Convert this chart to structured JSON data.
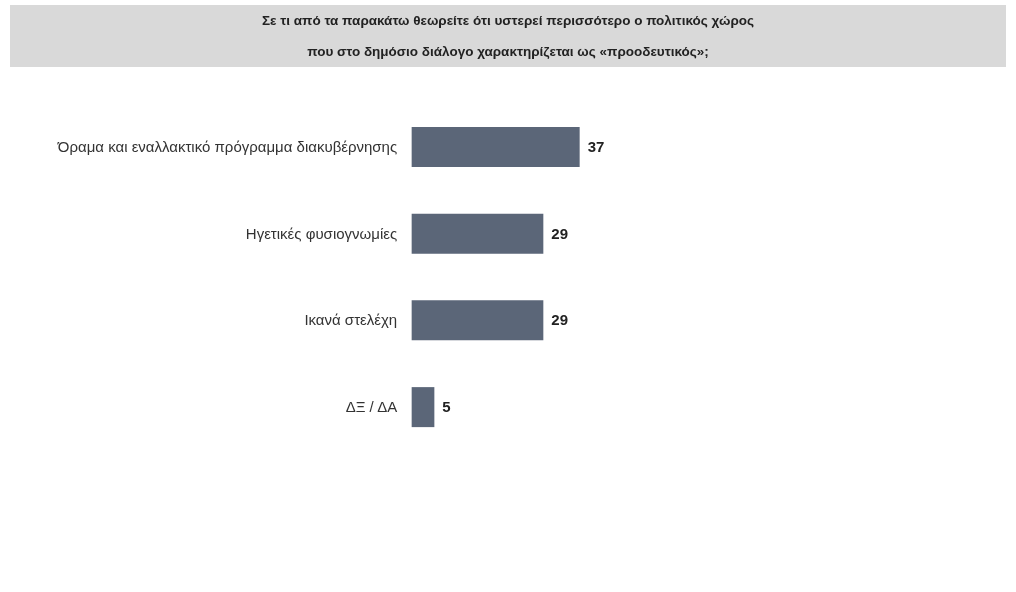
{
  "chart_data": {
    "type": "bar",
    "orientation": "horizontal",
    "title": "Σε τι από τα παρακάτω θεωρείτε ότι υστερεί περισσότερο ο πολιτικός χώρος\nπου στο δημόσιο διάλογο χαρακτηρίζεται ως «προοδευτικός»;",
    "categories": [
      "Όραμα και εναλλακτικό πρόγραμμα διακυβέρνησης",
      "Ηγετικές φυσιογνωμίες",
      "Ικανά στελέχη",
      "ΔΞ / ΔΑ"
    ],
    "values": [
      37,
      29,
      29,
      5
    ],
    "color": "#5b6678",
    "data_labels": true
  }
}
